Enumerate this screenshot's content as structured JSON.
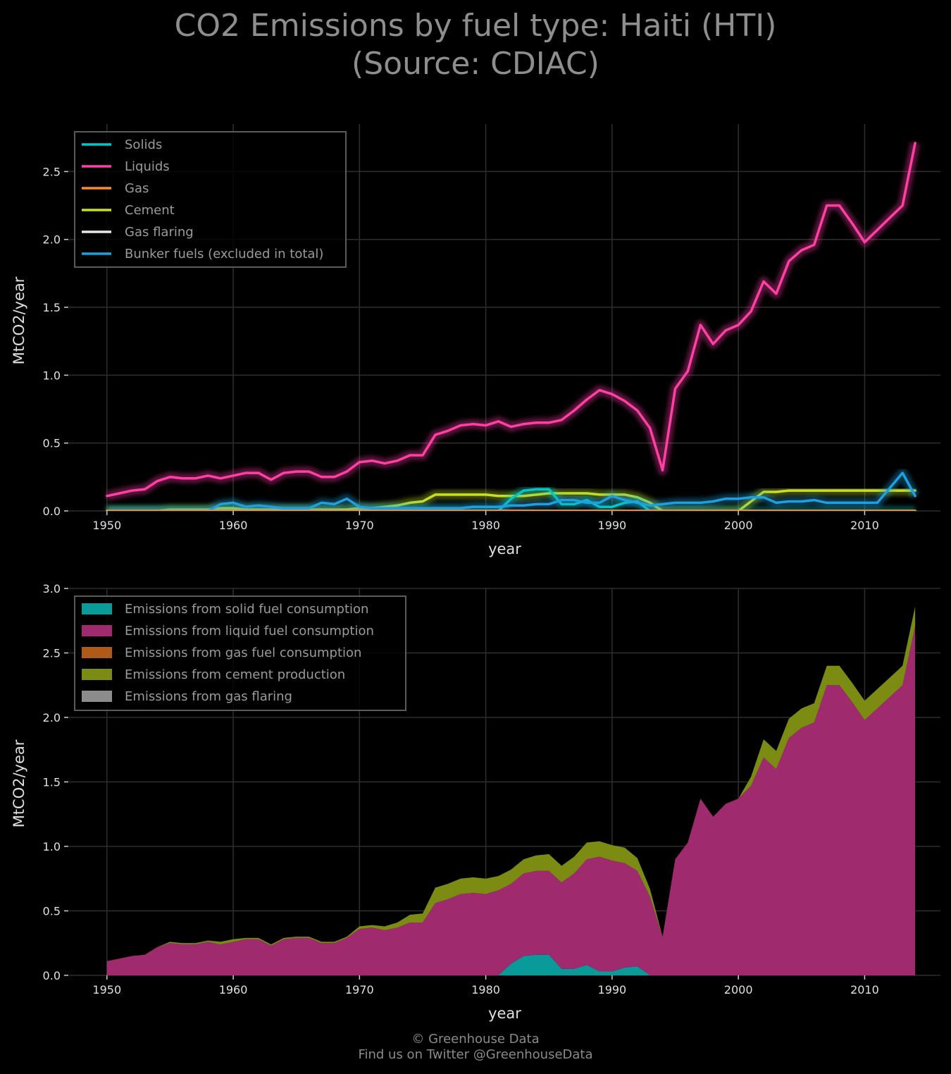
{
  "title": {
    "line1": "CO2 Emissions by fuel type: Haiti (HTI)",
    "line2": "(Source: CDIAC)"
  },
  "footer": {
    "line1": "© Greenhouse Data",
    "line2": "Find us on Twitter @GreenhouseData"
  },
  "chart_data": [
    {
      "type": "line",
      "xlabel": "year",
      "ylabel": "MtCO2/year",
      "xlim": [
        1947,
        2016
      ],
      "ylim": [
        0,
        2.85
      ],
      "xticks": [
        1950,
        1960,
        1970,
        1980,
        1990,
        2000,
        2010
      ],
      "yticks": [
        "0.0",
        "0.5",
        "1.0",
        "1.5",
        "2.0",
        "2.5"
      ],
      "grid": true,
      "legend_position": "top-left",
      "x": [
        1950,
        1951,
        1952,
        1953,
        1954,
        1955,
        1956,
        1957,
        1958,
        1959,
        1960,
        1961,
        1962,
        1963,
        1964,
        1965,
        1966,
        1967,
        1968,
        1969,
        1970,
        1971,
        1972,
        1973,
        1974,
        1975,
        1976,
        1977,
        1978,
        1979,
        1980,
        1981,
        1982,
        1983,
        1984,
        1985,
        1986,
        1987,
        1988,
        1989,
        1990,
        1991,
        1992,
        1993,
        1994,
        1995,
        1996,
        1997,
        1998,
        1999,
        2000,
        2001,
        2002,
        2003,
        2004,
        2005,
        2006,
        2007,
        2008,
        2009,
        2010,
        2011,
        2012,
        2013,
        2014
      ],
      "series": [
        {
          "name": "Solids",
          "color": "#00c8c8",
          "values": [
            0,
            0,
            0,
            0,
            0,
            0,
            0,
            0,
            0,
            0,
            0,
            0,
            0,
            0,
            0,
            0,
            0,
            0,
            0,
            0,
            0,
            0,
            0,
            0,
            0,
            0,
            0,
            0,
            0,
            0,
            0,
            0,
            0.09,
            0.15,
            0.16,
            0.16,
            0.05,
            0.05,
            0.08,
            0.03,
            0.03,
            0.06,
            0.07,
            0,
            0,
            0,
            0,
            0,
            0,
            0,
            0,
            0,
            0,
            0,
            0,
            0,
            0,
            0,
            0,
            0,
            0,
            0,
            0,
            0,
            0
          ]
        },
        {
          "name": "Liquids",
          "color": "#ff3fa4",
          "values": [
            0.11,
            0.13,
            0.15,
            0.16,
            0.22,
            0.25,
            0.24,
            0.24,
            0.26,
            0.24,
            0.26,
            0.28,
            0.28,
            0.23,
            0.28,
            0.29,
            0.29,
            0.25,
            0.25,
            0.29,
            0.36,
            0.37,
            0.35,
            0.37,
            0.41,
            0.41,
            0.56,
            0.59,
            0.63,
            0.64,
            0.63,
            0.66,
            0.62,
            0.64,
            0.65,
            0.65,
            0.67,
            0.74,
            0.82,
            0.89,
            0.86,
            0.81,
            0.74,
            0.61,
            0.3,
            0.9,
            1.03,
            1.37,
            1.23,
            1.33,
            1.37,
            1.47,
            1.69,
            1.6,
            1.84,
            1.92,
            1.96,
            2.25,
            2.25,
            2.12,
            1.98,
            2.07,
            2.16,
            2.25,
            2.71
          ]
        },
        {
          "name": "Gas",
          "color": "#ff8a2a",
          "values": [
            0,
            0,
            0,
            0,
            0,
            0,
            0,
            0,
            0,
            0,
            0,
            0,
            0,
            0,
            0,
            0,
            0,
            0,
            0,
            0,
            0,
            0,
            0,
            0,
            0,
            0,
            0,
            0,
            0,
            0,
            0,
            0,
            0,
            0,
            0,
            0,
            0,
            0,
            0,
            0,
            0,
            0,
            0,
            0,
            0,
            0,
            0,
            0,
            0,
            0,
            0,
            0,
            0,
            0,
            0,
            0,
            0,
            0,
            0,
            0,
            0,
            0,
            0,
            0,
            0
          ]
        },
        {
          "name": "Cement",
          "color": "#c8e020",
          "values": [
            0,
            0,
            0,
            0,
            0,
            0.01,
            0.01,
            0.01,
            0.01,
            0.02,
            0.02,
            0.01,
            0.01,
            0.01,
            0.01,
            0.01,
            0.01,
            0.01,
            0.01,
            0.01,
            0.02,
            0.02,
            0.03,
            0.04,
            0.06,
            0.07,
            0.12,
            0.12,
            0.12,
            0.12,
            0.12,
            0.11,
            0.11,
            0.11,
            0.12,
            0.13,
            0.13,
            0.13,
            0.13,
            0.12,
            0.12,
            0.12,
            0.1,
            0.06,
            0,
            0,
            0,
            0,
            0,
            0,
            0,
            0.07,
            0.14,
            0.14,
            0.15,
            0.15,
            0.15,
            0.15,
            0.15,
            0.15,
            0.15,
            0.15,
            0.15,
            0.15,
            0.15
          ]
        },
        {
          "name": "Gas flaring",
          "color": "#e8e8e8",
          "values": [
            0,
            0,
            0,
            0,
            0,
            0,
            0,
            0,
            0,
            0,
            0,
            0,
            0,
            0,
            0,
            0,
            0,
            0,
            0,
            0,
            0,
            0,
            0,
            0,
            0,
            0,
            0,
            0,
            0,
            0,
            0,
            0,
            0,
            0,
            0,
            0,
            0,
            0,
            0,
            0,
            0,
            0,
            0,
            0,
            0,
            0,
            0,
            0,
            0,
            0,
            0,
            0,
            0,
            0,
            0,
            0,
            0,
            0,
            0,
            0,
            0,
            0,
            0,
            0,
            0
          ]
        },
        {
          "name": "Bunker fuels (excluded in total)",
          "color": "#1ea0e0",
          "values": [
            0,
            0,
            0,
            0,
            0,
            0,
            0,
            0,
            0,
            0.05,
            0.06,
            0.03,
            0.04,
            0.03,
            0.02,
            0.02,
            0.02,
            0.06,
            0.05,
            0.09,
            0.03,
            0.02,
            0.02,
            0.02,
            0.02,
            0.02,
            0.02,
            0.02,
            0.02,
            0.03,
            0.03,
            0.03,
            0.04,
            0.04,
            0.05,
            0.05,
            0.08,
            0.08,
            0.06,
            0.06,
            0.11,
            0.08,
            0.06,
            0.04,
            0.05,
            0.06,
            0.06,
            0.06,
            0.07,
            0.09,
            0.09,
            0.1,
            0.1,
            0.06,
            0.07,
            0.07,
            0.08,
            0.06,
            0.06,
            0.06,
            0.06,
            0.06,
            0.17,
            0.28,
            0.11
          ]
        }
      ]
    },
    {
      "type": "area",
      "stacked": true,
      "xlabel": "year",
      "ylabel": "MtCO2/year",
      "xlim": [
        1947,
        2016
      ],
      "ylim": [
        0,
        3.0
      ],
      "xticks": [
        1950,
        1960,
        1970,
        1980,
        1990,
        2000,
        2010
      ],
      "yticks": [
        "0.0",
        "0.5",
        "1.0",
        "1.5",
        "2.0",
        "2.5",
        "3.0"
      ],
      "grid": true,
      "legend_position": "top-left",
      "series": [
        {
          "name": "Emissions from solid fuel consumption",
          "color": "#0a9a9a",
          "ref": "Solids"
        },
        {
          "name": "Emissions from liquid fuel consumption",
          "color": "#a02a6e",
          "ref": "Liquids"
        },
        {
          "name": "Emissions from gas fuel consumption",
          "color": "#b05a1a",
          "ref": "Gas"
        },
        {
          "name": "Emissions from cement production",
          "color": "#7c8c12",
          "ref": "Cement"
        },
        {
          "name": "Emissions from gas flaring",
          "color": "#8c8c8c",
          "ref": "Gas flaring"
        }
      ]
    }
  ]
}
